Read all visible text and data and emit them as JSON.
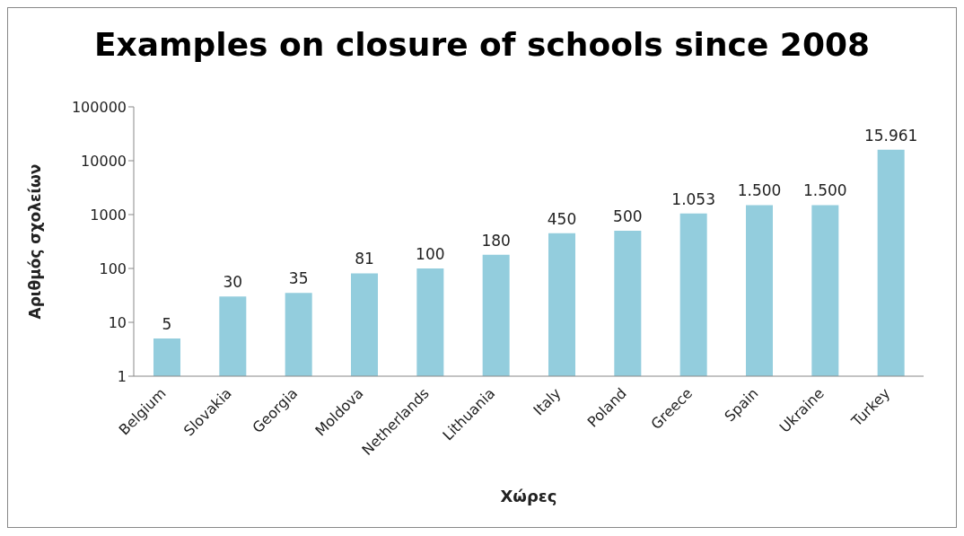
{
  "chart_data": {
    "type": "bar",
    "title": "Examples on closure of schools since 2008",
    "xlabel": "Χώρες",
    "ylabel": "Αριθμός σχολείων",
    "categories": [
      "Belgium",
      "Slovakia",
      "Georgia",
      "Moldova",
      "Netherlands",
      "Lithuania",
      "Italy",
      "Poland",
      "Greece",
      "Spain",
      "Ukraine",
      "Turkey"
    ],
    "values": [
      5,
      30,
      35,
      81,
      100,
      180,
      450,
      500,
      1053,
      1500,
      1500,
      15961
    ],
    "value_labels": [
      "5",
      "30",
      "35",
      "81",
      "100",
      "180",
      "450",
      "500",
      "1.053",
      "1.500",
      "1.500",
      "15.961"
    ],
    "color": "#93cddd",
    "log": true,
    "ylim": [
      1,
      100000
    ],
    "yticks": [
      1,
      10,
      100,
      1000,
      10000,
      100000
    ],
    "grid": false
  }
}
